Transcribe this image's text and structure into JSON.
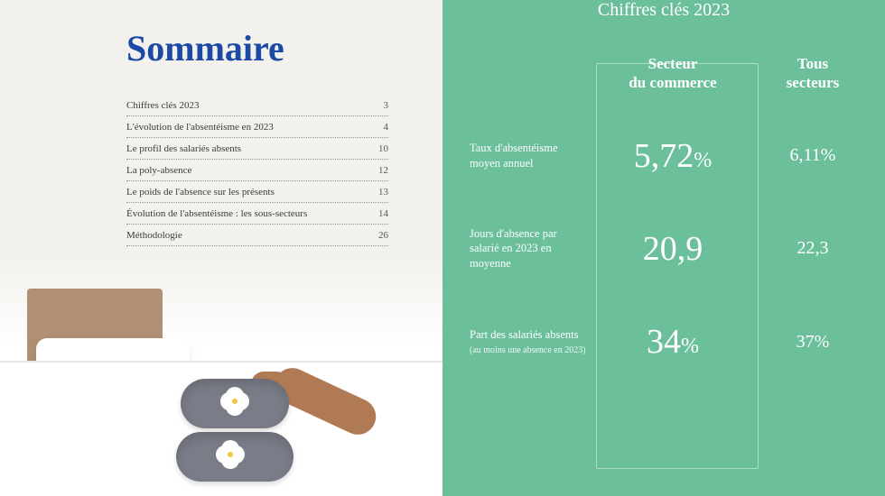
{
  "left": {
    "title": "Sommaire",
    "toc": [
      {
        "label": "Chiffres clés 2023",
        "page": "3"
      },
      {
        "label": "L'évolution de l'absentéisme en 2023",
        "page": "4"
      },
      {
        "label": "Le profil des salariés absents",
        "page": "10"
      },
      {
        "label": "La poly-absence",
        "page": "12"
      },
      {
        "label": "Le poids de l'absence sur les présents",
        "page": "13"
      },
      {
        "label": "Évolution de l'absentéisme : les sous-secteurs",
        "page": "14"
      },
      {
        "label": "Méthodologie",
        "page": "26"
      }
    ]
  },
  "right": {
    "title_partial": "Chiffres clés 2023",
    "columns": {
      "main": "Secteur\ndu commerce",
      "secondary": "Tous\nsecteurs"
    },
    "rows": [
      {
        "label": "Taux d'absentéisme moyen annuel",
        "sublabel": "",
        "main_value": "5,72",
        "main_suffix": "%",
        "secondary_value": "6,11%"
      },
      {
        "label": "Jours d'absence par salarié en 2023 en moyenne",
        "sublabel": "",
        "main_value": "20,9",
        "main_suffix": "",
        "secondary_value": "22,3"
      },
      {
        "label": "Part des salariés absents",
        "sublabel": "(au moins une absence en 2023)",
        "main_value": "34",
        "main_suffix": "%",
        "secondary_value": "37%"
      }
    ],
    "colors": {
      "panel_bg": "#6bbf9a",
      "text": "#ffffff",
      "box_border": "rgba(255,255,255,0.45)"
    }
  }
}
